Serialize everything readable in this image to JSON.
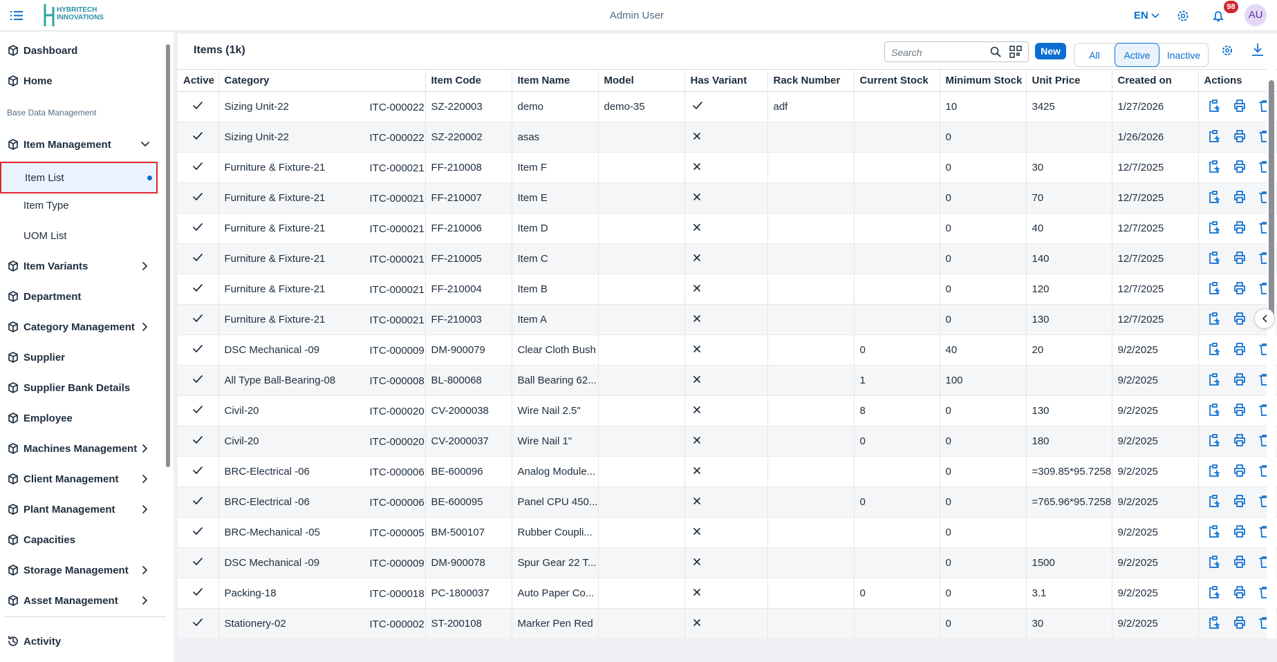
{
  "header": {
    "logo_line1": "HYBRITECH",
    "logo_line2": "INNOVATIONS",
    "user": "Admin User",
    "language": "EN",
    "notification_count": "98",
    "avatar": "AU"
  },
  "sidebar": {
    "entries": [
      {
        "kind": "nav",
        "label": "Dashboard",
        "chevron": null
      },
      {
        "kind": "nav",
        "label": "Home",
        "chevron": null
      },
      {
        "kind": "section",
        "label": "Base Data Management",
        "chevron": null
      },
      {
        "kind": "nav",
        "label": "Item Management",
        "chevron": "down"
      },
      {
        "kind": "sub",
        "label": "Item List",
        "chevron": null,
        "selected": true
      },
      {
        "kind": "sub",
        "label": "Item Type",
        "chevron": null
      },
      {
        "kind": "sub",
        "label": "UOM List",
        "chevron": null
      },
      {
        "kind": "nav",
        "label": "Item Variants",
        "chevron": "right"
      },
      {
        "kind": "nav",
        "label": "Department",
        "chevron": null
      },
      {
        "kind": "nav",
        "label": "Category Management",
        "chevron": "right"
      },
      {
        "kind": "nav",
        "label": "Supplier",
        "chevron": null
      },
      {
        "kind": "nav",
        "label": "Supplier Bank Details",
        "chevron": null
      },
      {
        "kind": "nav",
        "label": "Employee",
        "chevron": null
      },
      {
        "kind": "nav",
        "label": "Machines Management",
        "chevron": "right"
      },
      {
        "kind": "nav",
        "label": "Client Management",
        "chevron": "right"
      },
      {
        "kind": "nav",
        "label": "Plant Management",
        "chevron": "right"
      },
      {
        "kind": "nav",
        "label": "Capacities",
        "chevron": null
      },
      {
        "kind": "nav",
        "label": "Storage Management",
        "chevron": "right"
      },
      {
        "kind": "nav",
        "label": "Asset Management",
        "chevron": "right"
      }
    ],
    "footer": "Activity"
  },
  "toolbar": {
    "title": "Items (1k)",
    "search_placeholder": "Search",
    "new_button": "New",
    "filters": [
      "All",
      "Active",
      "Inactive"
    ],
    "active_filter": 1
  },
  "table": {
    "columns": [
      "Active",
      "Category",
      "Item Code",
      "Item Name",
      "Model",
      "Has Variant",
      "Rack Number",
      "Current Stock",
      "Minimum Stock",
      "Unit Price",
      "Created on",
      "Actions"
    ],
    "rows": [
      [
        true,
        "Sizing Unit-22",
        "ITC-000022",
        "SZ-220003",
        "demo",
        "demo-35",
        true,
        "adf",
        null,
        "10",
        "3425",
        "1/27/2026"
      ],
      [
        true,
        "Sizing Unit-22",
        "ITC-000022",
        "SZ-220002",
        "asas",
        null,
        false,
        null,
        null,
        "0",
        null,
        "1/26/2026"
      ],
      [
        true,
        "Furniture & Fixture-21",
        "ITC-000021",
        "FF-210008",
        "Item F",
        null,
        false,
        null,
        null,
        "0",
        "30",
        "12/7/2025"
      ],
      [
        true,
        "Furniture & Fixture-21",
        "ITC-000021",
        "FF-210007",
        "Item E",
        null,
        false,
        null,
        null,
        "0",
        "70",
        "12/7/2025"
      ],
      [
        true,
        "Furniture & Fixture-21",
        "ITC-000021",
        "FF-210006",
        "Item D",
        null,
        false,
        null,
        null,
        "0",
        "40",
        "12/7/2025"
      ],
      [
        true,
        "Furniture & Fixture-21",
        "ITC-000021",
        "FF-210005",
        "Item C",
        null,
        false,
        null,
        null,
        "0",
        "140",
        "12/7/2025"
      ],
      [
        true,
        "Furniture & Fixture-21",
        "ITC-000021",
        "FF-210004",
        "Item B",
        null,
        false,
        null,
        null,
        "0",
        "120",
        "12/7/2025"
      ],
      [
        true,
        "Furniture & Fixture-21",
        "ITC-000021",
        "FF-210003",
        "Item A",
        null,
        false,
        null,
        null,
        "0",
        "130",
        "12/7/2025"
      ],
      [
        true,
        "DSC Mechanical -09",
        "ITC-000009",
        "DM-900079",
        "Clear Cloth Bush",
        null,
        false,
        null,
        "0",
        "40",
        "20",
        "9/2/2025"
      ],
      [
        true,
        "All Type Ball-Bearing-08",
        "ITC-000008",
        "BL-800068",
        "Ball Bearing 62...",
        null,
        false,
        null,
        "1",
        "100",
        null,
        "9/2/2025"
      ],
      [
        true,
        "Civil-20",
        "ITC-000020",
        "CV-2000038",
        "Wire Nail 2.5\"",
        null,
        false,
        null,
        "8",
        "0",
        "130",
        "9/2/2025"
      ],
      [
        true,
        "Civil-20",
        "ITC-000020",
        "CV-2000037",
        "Wire Nail 1\"",
        null,
        false,
        null,
        "0",
        "0",
        "180",
        "9/2/2025"
      ],
      [
        true,
        "BRC-Electrical -06",
        "ITC-000006",
        "BE-600096",
        "Analog Module...",
        null,
        false,
        null,
        null,
        "0",
        "=309.85*95.7258",
        "9/2/2025"
      ],
      [
        true,
        "BRC-Electrical -06",
        "ITC-000006",
        "BE-600095",
        "Panel CPU 450...",
        null,
        false,
        null,
        "0",
        "0",
        "=765.96*95.7258",
        "9/2/2025"
      ],
      [
        true,
        "BRC-Mechanical -05",
        "ITC-000005",
        "BM-500107",
        "Rubber Coupli...",
        null,
        false,
        null,
        null,
        "0",
        null,
        "9/2/2025"
      ],
      [
        true,
        "DSC Mechanical -09",
        "ITC-000009",
        "DM-900078",
        "Spur Gear 22 T...",
        null,
        false,
        null,
        null,
        "0",
        "1500",
        "9/2/2025"
      ],
      [
        true,
        "Packing-18",
        "ITC-000018",
        "PC-1800037",
        "Auto Paper Co...",
        null,
        false,
        null,
        "0",
        "0",
        "3.1",
        "9/2/2025"
      ],
      [
        true,
        "Stationery-02",
        "ITC-000002",
        "ST-200108",
        "Marker Pen Red",
        null,
        false,
        null,
        null,
        "0",
        "30",
        "9/2/2025"
      ]
    ]
  }
}
